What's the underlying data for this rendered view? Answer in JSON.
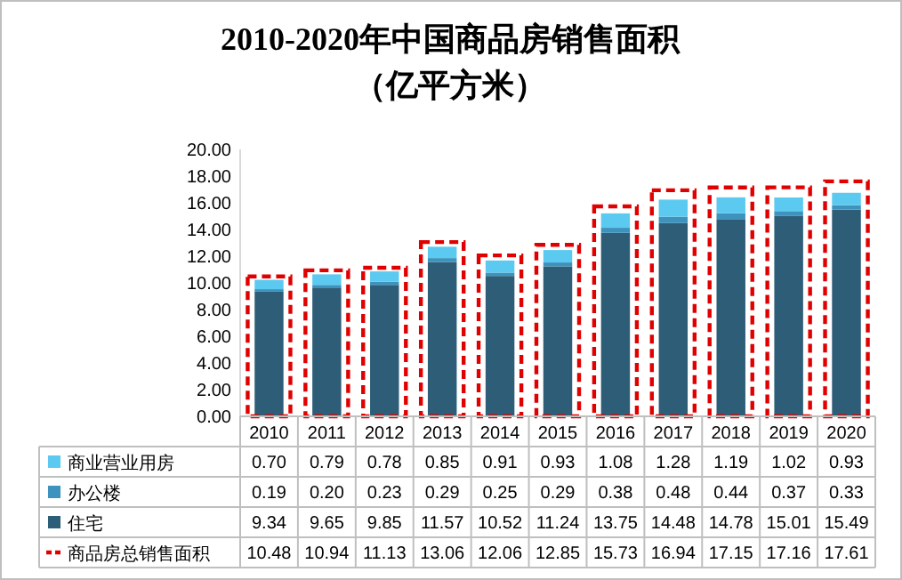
{
  "chart_data": [
    {
      "type": "bar",
      "title": "2010-2020年中国商品房销售面积",
      "subtitle": "（亿平方米）",
      "categories": [
        "2010",
        "2011",
        "2012",
        "2013",
        "2014",
        "2015",
        "2016",
        "2017",
        "2018",
        "2019",
        "2020"
      ],
      "stacked": true,
      "series": [
        {
          "name": "住宅",
          "color": "#2e5d78",
          "values": [
            9.34,
            9.65,
            9.85,
            11.57,
            10.52,
            11.24,
            13.75,
            14.48,
            14.78,
            15.01,
            15.49
          ],
          "value_labels": [
            "9.34",
            "9.65",
            "9.85",
            "11.57",
            "10.52",
            "11.24",
            "13.75",
            "14.48",
            "14.78",
            "15.01",
            "15.49"
          ]
        },
        {
          "name": "办公楼",
          "color": "#3d93bd",
          "values": [
            0.19,
            0.2,
            0.23,
            0.29,
            0.25,
            0.29,
            0.38,
            0.48,
            0.44,
            0.37,
            0.33
          ],
          "value_labels": [
            "0.19",
            "0.20",
            "0.23",
            "0.29",
            "0.25",
            "0.29",
            "0.38",
            "0.48",
            "0.44",
            "0.37",
            "0.33"
          ]
        },
        {
          "name": "商业营业用房",
          "color": "#5ccaf0",
          "values": [
            0.7,
            0.79,
            0.78,
            0.85,
            0.91,
            0.93,
            1.08,
            1.28,
            1.19,
            1.02,
            0.93
          ],
          "value_labels": [
            "0.70",
            "0.79",
            "0.78",
            "0.85",
            "0.91",
            "0.93",
            "1.08",
            "1.28",
            "1.19",
            "1.02",
            "0.93"
          ]
        }
      ],
      "ylim": [
        0,
        20
      ],
      "yticks": [
        {
          "value": 0,
          "label": "0.00"
        },
        {
          "value": 2,
          "label": "2.00"
        },
        {
          "value": 4,
          "label": "4.00"
        },
        {
          "value": 6,
          "label": "6.00"
        },
        {
          "value": 8,
          "label": "8.00"
        },
        {
          "value": 10,
          "label": "10.00"
        },
        {
          "value": 12,
          "label": "12.00"
        },
        {
          "value": 14,
          "label": "14.00"
        },
        {
          "value": 16,
          "label": "16.00"
        },
        {
          "value": 18,
          "label": "18.00"
        },
        {
          "value": 20,
          "label": "20.00"
        }
      ],
      "legend": "bottom"
    },
    {
      "type": "bar",
      "categories": [
        "2010",
        "2011",
        "2012",
        "2013",
        "2014",
        "2015",
        "2016",
        "2017",
        "2018",
        "2019",
        "2020"
      ],
      "series": [
        {
          "name": "商品房总销售面积",
          "color": "#e00000",
          "line_style": "dashed",
          "values": [
            10.48,
            10.94,
            11.13,
            13.06,
            12.06,
            12.85,
            15.73,
            16.94,
            17.15,
            17.16,
            17.61
          ],
          "value_labels": [
            "10.48",
            "10.94",
            "11.13",
            "13.06",
            "12.06",
            "12.85",
            "15.73",
            "16.94",
            "17.15",
            "17.16",
            "17.61"
          ]
        }
      ],
      "ylim": [
        0,
        20
      ],
      "tick_labels": false,
      "legend": "bottom"
    }
  ]
}
